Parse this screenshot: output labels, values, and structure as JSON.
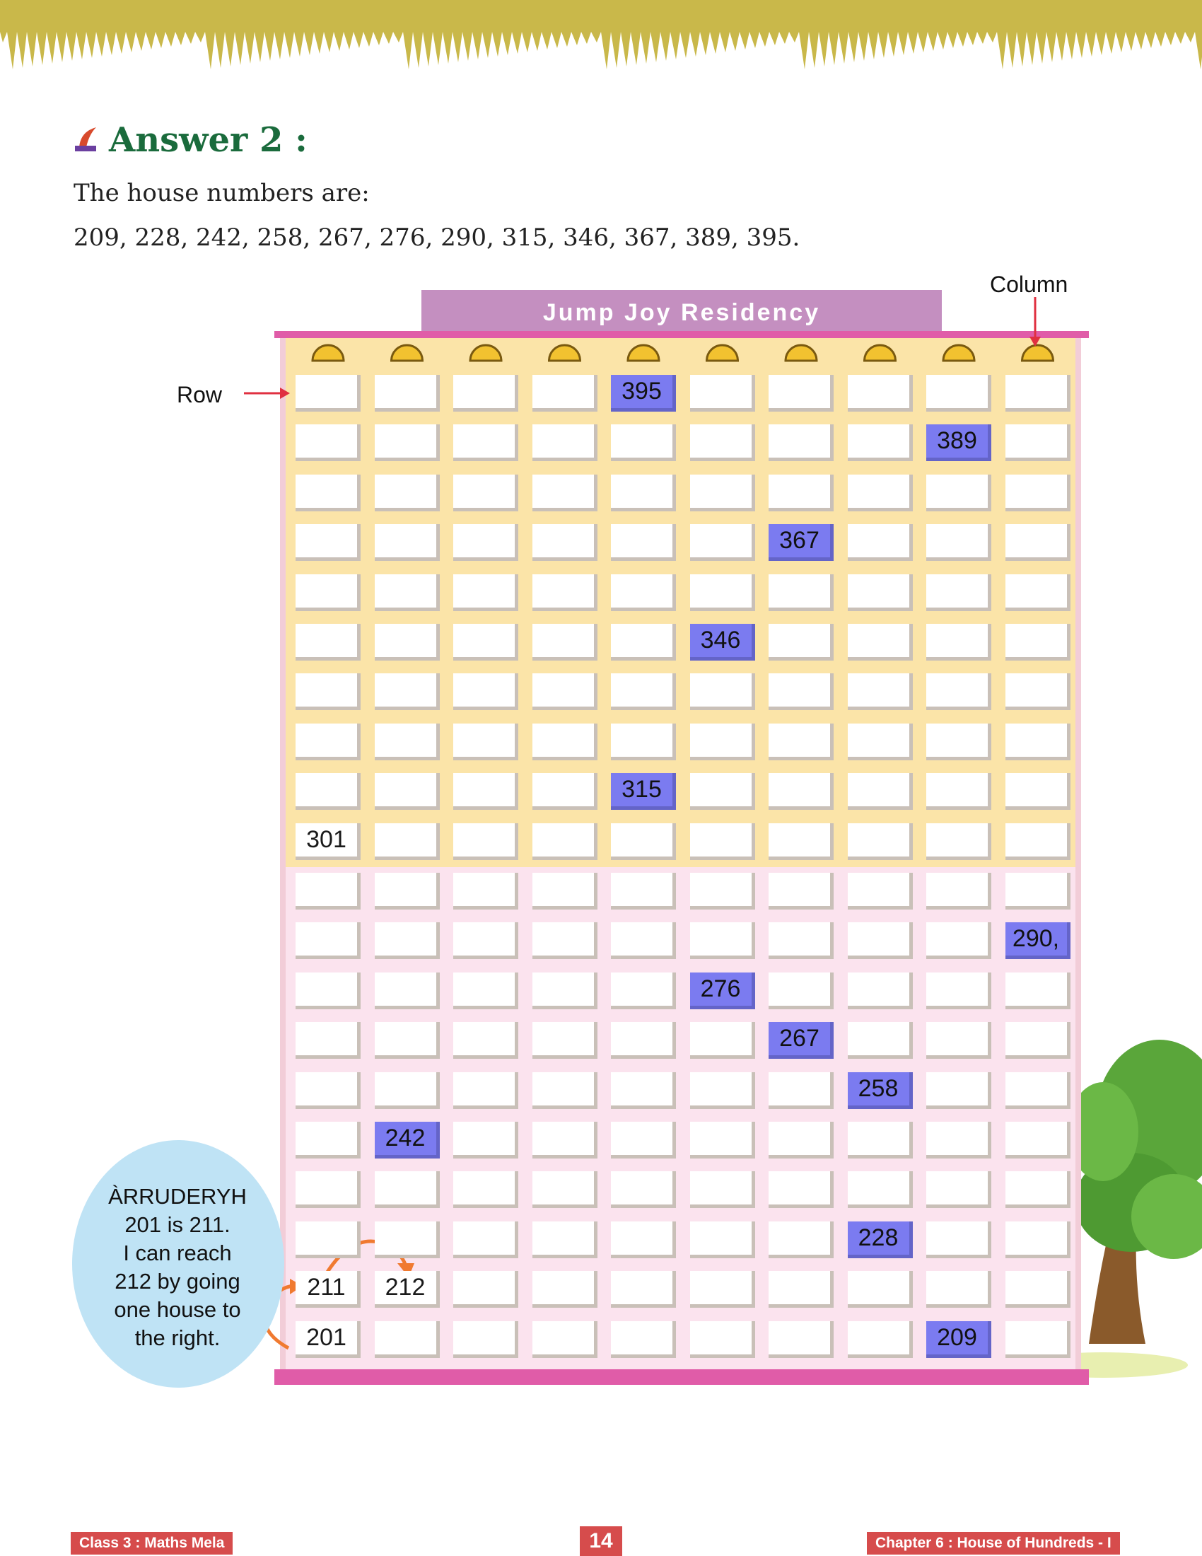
{
  "heading": {
    "label": "Answer 2 :"
  },
  "intro": "The house numbers are:",
  "numbers_line": "209, 228, 242, 258, 267, 276, 290, 315, 346, 367, 389, 395.",
  "building": {
    "name": "Jump Joy Residency",
    "column_label": "Column",
    "row_label": "Row",
    "rows": 20,
    "columns": 10,
    "houses": [
      {
        "label": "395",
        "row": 0,
        "col": 4,
        "highlight": true
      },
      {
        "label": "389",
        "row": 1,
        "col": 8,
        "highlight": true
      },
      {
        "label": "367",
        "row": 3,
        "col": 6,
        "highlight": true
      },
      {
        "label": "346",
        "row": 5,
        "col": 5,
        "highlight": true
      },
      {
        "label": "315",
        "row": 8,
        "col": 4,
        "highlight": true
      },
      {
        "label": "301",
        "row": 9,
        "col": 0,
        "highlight": false
      },
      {
        "label": "290,",
        "row": 11,
        "col": 9,
        "highlight": true
      },
      {
        "label": "276",
        "row": 12,
        "col": 5,
        "highlight": true
      },
      {
        "label": "267",
        "row": 13,
        "col": 6,
        "highlight": true
      },
      {
        "label": "258",
        "row": 14,
        "col": 7,
        "highlight": true
      },
      {
        "label": "242",
        "row": 15,
        "col": 1,
        "highlight": true
      },
      {
        "label": "228",
        "row": 17,
        "col": 7,
        "highlight": true
      },
      {
        "label": "211",
        "row": 18,
        "col": 0,
        "highlight": false
      },
      {
        "label": "212",
        "row": 18,
        "col": 1,
        "highlight": false
      },
      {
        "label": "201",
        "row": 19,
        "col": 0,
        "highlight": false
      },
      {
        "label": "209",
        "row": 19,
        "col": 8,
        "highlight": true
      }
    ]
  },
  "bubble": {
    "lines": [
      "ÀRRUDERYH",
      "201 is 211.",
      "I can reach",
      "212 by going",
      "one house to",
      "the right."
    ]
  },
  "footer": {
    "left": "Class 3 : Maths Mela",
    "page": "14",
    "right": "Chapter 6 : House of Hundreds - I"
  },
  "colors": {
    "heading": "#1a6b3c",
    "highlight": "#7b7bf0",
    "roof": "#c48fc0",
    "beam": "#e05ca8",
    "upper_floor": "#fbe4a8",
    "lower_floor": "#fbe3ee",
    "bubble": "#bfe3f5",
    "footer": "#d64c4c",
    "arrow": "#f07a30"
  },
  "icons": [
    "pen-logo-icon",
    "arrow-right-icon",
    "arrow-down-icon",
    "curved-arrow-icon",
    "tree-icon",
    "grass-icon"
  ]
}
